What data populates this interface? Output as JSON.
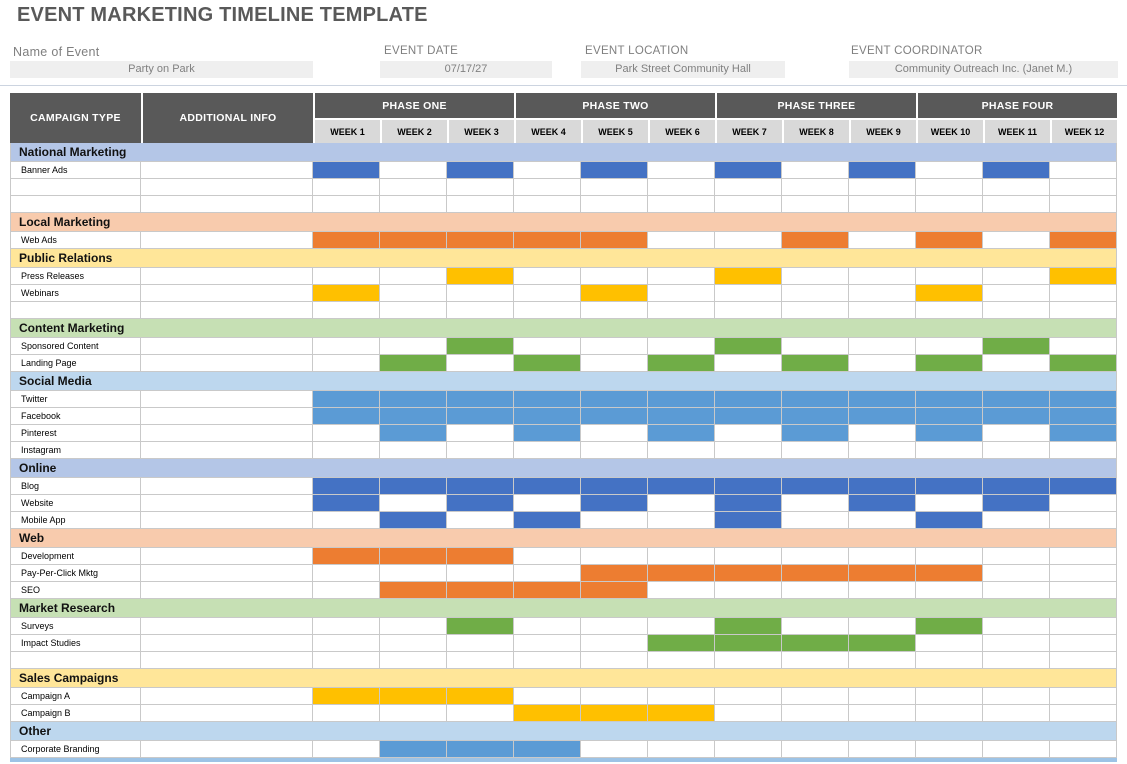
{
  "page_title": "EVENT MARKETING TIMELINE TEMPLATE",
  "fields": {
    "name": {
      "label": "Name of Event",
      "value": "Party on Park"
    },
    "date": {
      "label": "EVENT DATE",
      "value": "07/17/27"
    },
    "location": {
      "label": "EVENT LOCATION",
      "value": "Park Street Community Hall"
    },
    "coordinator": {
      "label": "EVENT COORDINATOR",
      "value": "Community Outreach Inc. (Janet M.)"
    }
  },
  "colors": {
    "header_dark": "#595959",
    "week_header_bg": "#D9D9D9",
    "field_box_bg": "#EFEFEF",
    "bar_dark_blue": "#4472C4",
    "bar_medium_blue": "#5B9BD5",
    "bar_orange": "#ED7D31",
    "bar_gold": "#FFC000",
    "bar_green": "#70AD47",
    "section_periwinkle": "#B4C6E7",
    "section_peach": "#F8CBAD",
    "section_yellow": "#FFE699",
    "section_green": "#C6E0B4",
    "section_light_blue": "#BDD7EE",
    "bottom_strip": "#9DC3E6",
    "grid_border": "#C9C9C9"
  },
  "chart_data": {
    "type": "table",
    "subtype": "gantt-timeline",
    "title": "EVENT MARKETING TIMELINE TEMPLATE",
    "column_headers": [
      "CAMPAIGN TYPE",
      "ADDITIONAL INFO"
    ],
    "phases": [
      {
        "label": "PHASE ONE",
        "weeks": [
          "WEEK 1",
          "WEEK 2",
          "WEEK 3"
        ]
      },
      {
        "label": "PHASE TWO",
        "weeks": [
          "WEEK 4",
          "WEEK 5",
          "WEEK 6"
        ]
      },
      {
        "label": "PHASE THREE",
        "weeks": [
          "WEEK 7",
          "WEEK 8",
          "WEEK 9"
        ]
      },
      {
        "label": "PHASE FOUR",
        "weeks": [
          "WEEK 10",
          "WEEK 11",
          "WEEK 12"
        ]
      }
    ],
    "num_weeks": 12,
    "rows": [
      {
        "kind": "section",
        "label": "National Marketing",
        "bg": "#B4C6E7"
      },
      {
        "kind": "item",
        "label": "Banner Ads",
        "additional_info": "",
        "bar_color": "#4472C4",
        "active_weeks": [
          1,
          3,
          5,
          7,
          9,
          11
        ]
      },
      {
        "kind": "spacer"
      },
      {
        "kind": "spacer"
      },
      {
        "kind": "section",
        "label": "Local Marketing",
        "bg": "#F8CBAD"
      },
      {
        "kind": "item",
        "label": "Web Ads",
        "additional_info": "",
        "bar_color": "#ED7D31",
        "active_weeks": [
          1,
          2,
          3,
          4,
          5,
          8,
          10,
          12
        ]
      },
      {
        "kind": "section",
        "label": "Public Relations",
        "bg": "#FFE699"
      },
      {
        "kind": "item",
        "label": "Press Releases",
        "additional_info": "",
        "bar_color": "#FFC000",
        "active_weeks": [
          3,
          7,
          12
        ]
      },
      {
        "kind": "item",
        "label": "Webinars",
        "additional_info": "",
        "bar_color": "#FFC000",
        "active_weeks": [
          1,
          5,
          10
        ]
      },
      {
        "kind": "spacer"
      },
      {
        "kind": "section",
        "label": "Content Marketing",
        "bg": "#C6E0B4"
      },
      {
        "kind": "item",
        "label": "Sponsored Content",
        "additional_info": "",
        "bar_color": "#70AD47",
        "active_weeks": [
          3,
          7,
          11
        ]
      },
      {
        "kind": "item",
        "label": "Landing Page",
        "additional_info": "",
        "bar_color": "#70AD47",
        "active_weeks": [
          2,
          4,
          6,
          8,
          10,
          12
        ]
      },
      {
        "kind": "section",
        "label": "Social Media",
        "bg": "#BDD7EE"
      },
      {
        "kind": "item",
        "label": "Twitter",
        "additional_info": "",
        "bar_color": "#5B9BD5",
        "active_weeks": [
          1,
          2,
          3,
          4,
          5,
          6,
          7,
          8,
          9,
          10,
          11,
          12
        ]
      },
      {
        "kind": "item",
        "label": "Facebook",
        "additional_info": "",
        "bar_color": "#5B9BD5",
        "active_weeks": [
          1,
          2,
          3,
          4,
          5,
          6,
          7,
          8,
          9,
          10,
          11,
          12
        ]
      },
      {
        "kind": "item",
        "label": "Pinterest",
        "additional_info": "",
        "bar_color": "#5B9BD5",
        "active_weeks": [
          2,
          4,
          6,
          8,
          10,
          12
        ]
      },
      {
        "kind": "item",
        "label": "Instagram",
        "additional_info": "",
        "bar_color": "#5B9BD5",
        "active_weeks": []
      },
      {
        "kind": "section",
        "label": "Online",
        "bg": "#B4C6E7"
      },
      {
        "kind": "item",
        "label": "Blog",
        "additional_info": "",
        "bar_color": "#4472C4",
        "active_weeks": [
          1,
          2,
          3,
          4,
          5,
          6,
          7,
          8,
          9,
          10,
          11,
          12
        ]
      },
      {
        "kind": "item",
        "label": "Website",
        "additional_info": "",
        "bar_color": "#4472C4",
        "active_weeks": [
          1,
          3,
          5,
          7,
          9,
          11
        ]
      },
      {
        "kind": "item",
        "label": "Mobile App",
        "additional_info": "",
        "bar_color": "#4472C4",
        "active_weeks": [
          2,
          4,
          7,
          10
        ]
      },
      {
        "kind": "section",
        "label": "Web",
        "bg": "#F8CBAD"
      },
      {
        "kind": "item",
        "label": "Development",
        "additional_info": "",
        "bar_color": "#ED7D31",
        "active_weeks": [
          1,
          2,
          3
        ]
      },
      {
        "kind": "item",
        "label": "Pay-Per-Click Mktg",
        "additional_info": "",
        "bar_color": "#ED7D31",
        "active_weeks": [
          5,
          6,
          7,
          8,
          9,
          10
        ]
      },
      {
        "kind": "item",
        "label": "SEO",
        "additional_info": "",
        "bar_color": "#ED7D31",
        "active_weeks": [
          2,
          3,
          4,
          5
        ]
      },
      {
        "kind": "section",
        "label": "Market Research",
        "bg": "#C6E0B4"
      },
      {
        "kind": "item",
        "label": "Surveys",
        "additional_info": "",
        "bar_color": "#70AD47",
        "active_weeks": [
          3,
          7,
          10
        ]
      },
      {
        "kind": "item",
        "label": "Impact Studies",
        "additional_info": "",
        "bar_color": "#70AD47",
        "active_weeks": [
          6,
          7,
          8,
          9
        ]
      },
      {
        "kind": "spacer"
      },
      {
        "kind": "section",
        "label": "Sales Campaigns",
        "bg": "#FFE699"
      },
      {
        "kind": "item",
        "label": "Campaign A",
        "additional_info": "",
        "bar_color": "#FFC000",
        "active_weeks": [
          1,
          2,
          3
        ]
      },
      {
        "kind": "item",
        "label": "Campaign B",
        "additional_info": "",
        "bar_color": "#FFC000",
        "active_weeks": [
          4,
          5,
          6
        ]
      },
      {
        "kind": "section",
        "label": "Other",
        "bg": "#BDD7EE"
      },
      {
        "kind": "item",
        "label": "Corporate Branding",
        "additional_info": "",
        "bar_color": "#5B9BD5",
        "active_weeks": [
          2,
          3,
          4
        ]
      }
    ]
  }
}
